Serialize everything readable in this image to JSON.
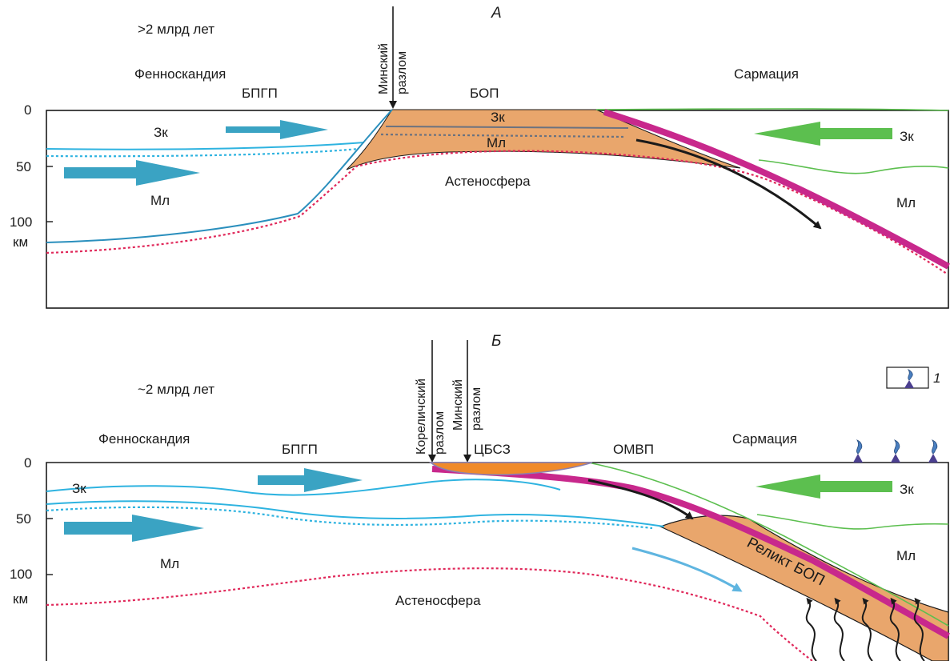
{
  "panel_a": {
    "letter": "А",
    "age": ">2 млрд лет",
    "left_region": "Фенноскандия",
    "left_belt": "БПГП",
    "fault": [
      "Минский",
      "разлом"
    ],
    "center_block": "БОП",
    "right_region": "Сармация",
    "crust_left": "Зк",
    "mantle_left": "Мл",
    "crust_center": "Зк",
    "mantle_center": "Мл",
    "asthenosphere": "Астеносфера",
    "crust_right": "Зк",
    "mantle_right": "Мл",
    "depth_ticks": [
      "0",
      "50",
      "100"
    ],
    "depth_unit": "км"
  },
  "panel_b": {
    "letter": "Б",
    "age": "~2 млрд лет",
    "left_region": "Фенноскандия",
    "left_belt": "БПГП",
    "fault1": [
      "Кореличский",
      "разлом"
    ],
    "fault2": [
      "Минский",
      "разлом"
    ],
    "center_block": "ЦБСЗ",
    "right_belt": "ОМВП",
    "right_region": "Сармация",
    "crust_left": "Зк",
    "mantle_left": "Мл",
    "asthenosphere": "Астеносфера",
    "relict": "Реликт БОП",
    "crust_right": "Зк",
    "mantle_right": "Мл",
    "depth_ticks": [
      "0",
      "50",
      "100"
    ],
    "depth_unit": "км"
  },
  "legend": {
    "number": "1"
  },
  "colors": {
    "blue_arrow": "#3aa3c3",
    "green_arrow": "#5cbf4f",
    "magenta_slab": "#c8288c",
    "orange_block": "#e9a66c",
    "cyan_line": "#2eb3e0",
    "red_dotted": "#e0285a",
    "frame": "#1a1a1a"
  }
}
